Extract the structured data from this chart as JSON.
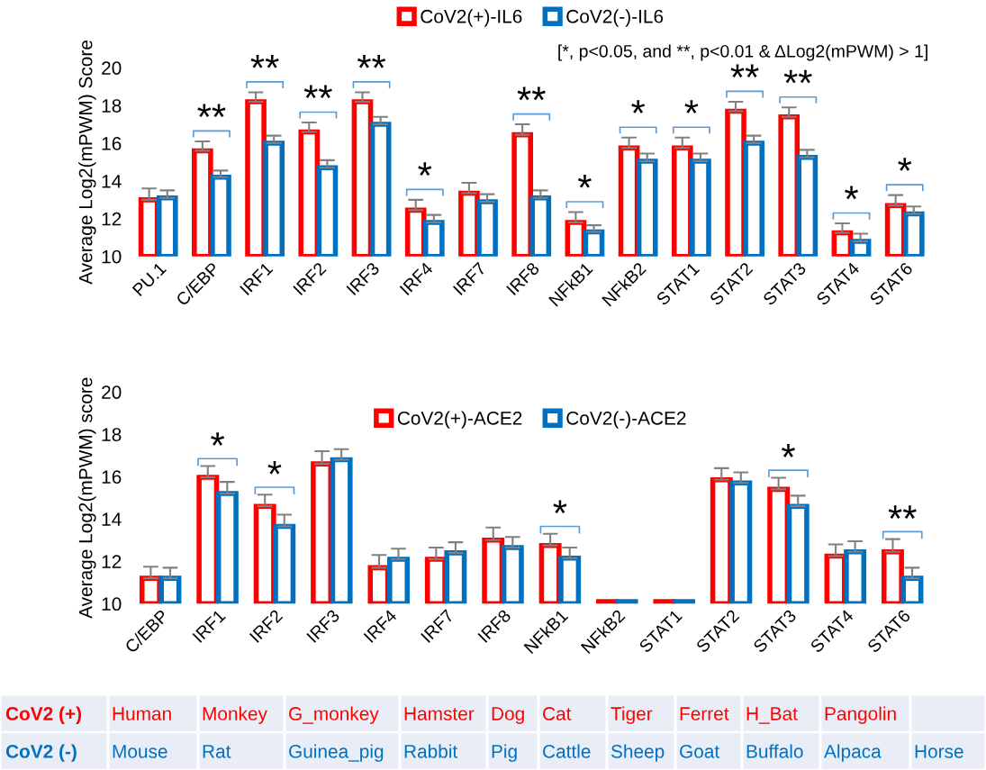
{
  "chart_data": [
    {
      "type": "bar",
      "ylabel": "Average Log2(mPWM) Score",
      "categories": [
        "PU.1",
        "C/EBP",
        "IRF1",
        "IRF2",
        "IRF3",
        "IRF4",
        "IRF7",
        "IRF8",
        "NFkB1",
        "NFkB2",
        "STAT1",
        "STAT2",
        "STAT3",
        "STAT4",
        "STAT6"
      ],
      "series": [
        {
          "name": "CoV2(+)-IL6",
          "color": "#ff0000",
          "values": [
            13.0,
            15.6,
            18.2,
            16.6,
            18.2,
            12.45,
            13.35,
            16.45,
            11.8,
            15.75,
            15.75,
            17.7,
            17.4,
            11.25,
            12.7
          ],
          "errors": [
            [
              13.0,
              13.6
            ],
            [
              15.6,
              16.1
            ],
            [
              18.2,
              18.7
            ],
            [
              16.6,
              17.1
            ],
            [
              18.2,
              18.7
            ],
            [
              12.45,
              13.0
            ],
            [
              13.35,
              13.9
            ],
            [
              16.45,
              17.0
            ],
            [
              11.8,
              12.35
            ],
            [
              15.75,
              16.3
            ],
            [
              15.75,
              16.3
            ],
            [
              17.7,
              18.2
            ],
            [
              17.4,
              17.9
            ],
            [
              11.25,
              11.75
            ],
            [
              12.7,
              13.25
            ]
          ]
        },
        {
          "name": "CoV2(-)-IL6",
          "color": "#0070c0",
          "values": [
            13.1,
            14.2,
            16.0,
            14.7,
            17.0,
            11.8,
            12.9,
            13.1,
            11.3,
            15.05,
            15.05,
            16.0,
            15.25,
            10.8,
            12.25
          ],
          "errors": [
            [
              13.1,
              13.5
            ],
            [
              14.2,
              14.55
            ],
            [
              16.0,
              16.4
            ],
            [
              14.7,
              15.1
            ],
            [
              17.0,
              17.4
            ],
            [
              11.8,
              12.2
            ],
            [
              12.9,
              13.3
            ],
            [
              13.1,
              13.5
            ],
            [
              11.3,
              11.65
            ],
            [
              15.05,
              15.45
            ],
            [
              15.05,
              15.45
            ],
            [
              16.0,
              16.4
            ],
            [
              15.25,
              15.65
            ],
            [
              10.8,
              11.2
            ],
            [
              12.25,
              12.65
            ]
          ]
        }
      ],
      "ylim": [
        10,
        20
      ],
      "yticks": [
        10,
        12,
        14,
        16,
        18,
        20
      ],
      "grid": false,
      "legend": "top",
      "subtitle": "[*, p<0.05, and **, p<0.01 & ΔLog2(mPWM) > 1]",
      "annotations": [
        null,
        "**",
        "**",
        "**",
        "**",
        "*",
        null,
        "**",
        "*",
        "*",
        "*",
        "**",
        "**",
        "*",
        "*"
      ]
    },
    {
      "type": "bar",
      "ylabel": "Average Log2(mPWM) score",
      "categories": [
        "C/EBP",
        "IRF1",
        "IRF2",
        "IRF3",
        "IRF4",
        "IRF7",
        "IRF8",
        "NFkB1",
        "NFkB2",
        "STAT1",
        "STAT2",
        "STAT3",
        "STAT4",
        "STAT6"
      ],
      "series": [
        {
          "name": "CoV2(+)-ACE2",
          "color": "#ff0000",
          "values": [
            11.2,
            15.97,
            14.6,
            16.6,
            11.7,
            12.1,
            13.0,
            12.75,
            10.1,
            10.1,
            15.85,
            15.4,
            12.25,
            12.45
          ],
          "errors": [
            [
              11.2,
              11.75
            ],
            [
              15.97,
              16.5
            ],
            [
              14.6,
              15.15
            ],
            [
              16.6,
              17.2
            ],
            [
              11.7,
              12.3
            ],
            [
              12.1,
              12.65
            ],
            [
              13.0,
              13.6
            ],
            [
              12.75,
              13.3
            ],
            null,
            null,
            [
              15.85,
              16.4
            ],
            [
              15.4,
              15.95
            ],
            [
              12.25,
              12.8
            ],
            [
              12.45,
              13.05
            ]
          ]
        },
        {
          "name": "CoV2(-)-ACE2",
          "color": "#0070c0",
          "values": [
            11.2,
            15.2,
            13.65,
            16.8,
            12.1,
            12.4,
            12.65,
            12.15,
            10.1,
            10.1,
            15.7,
            14.6,
            12.45,
            11.2
          ],
          "errors": [
            [
              11.2,
              11.7
            ],
            [
              15.2,
              15.75
            ],
            [
              13.65,
              14.2
            ],
            [
              16.8,
              17.3
            ],
            [
              12.1,
              12.6
            ],
            [
              12.4,
              12.9
            ],
            [
              12.65,
              13.15
            ],
            [
              12.15,
              12.65
            ],
            null,
            null,
            [
              15.7,
              16.2
            ],
            [
              14.6,
              15.1
            ],
            [
              12.45,
              12.95
            ],
            [
              11.2,
              11.7
            ]
          ]
        }
      ],
      "ylim": [
        10,
        20
      ],
      "yticks": [
        10,
        12,
        14,
        16,
        18,
        20
      ],
      "grid": false,
      "legend": "top",
      "annotations": [
        null,
        "*",
        "*",
        null,
        null,
        null,
        null,
        "*",
        null,
        null,
        null,
        "*",
        null,
        "**"
      ]
    },
    {
      "type": "other",
      "y_categories": [
        "CoV2 (+)",
        "CoV2 (-)"
      ],
      "colors": [
        "#ff0000",
        "#0070c0"
      ],
      "cell_labels": [
        [
          "Human",
          "Monkey",
          "G_monkey",
          "Hamster",
          "Dog",
          "Cat",
          "Tiger",
          "Ferret",
          "H_Bat",
          "Pangolin",
          null
        ],
        [
          "Mouse",
          "Rat",
          "Guinea_pig",
          "Rabbit",
          "Pig",
          "Cattle",
          "Sheep",
          "Goat",
          "Buffalo",
          "Alpaca",
          "Horse"
        ]
      ]
    }
  ]
}
